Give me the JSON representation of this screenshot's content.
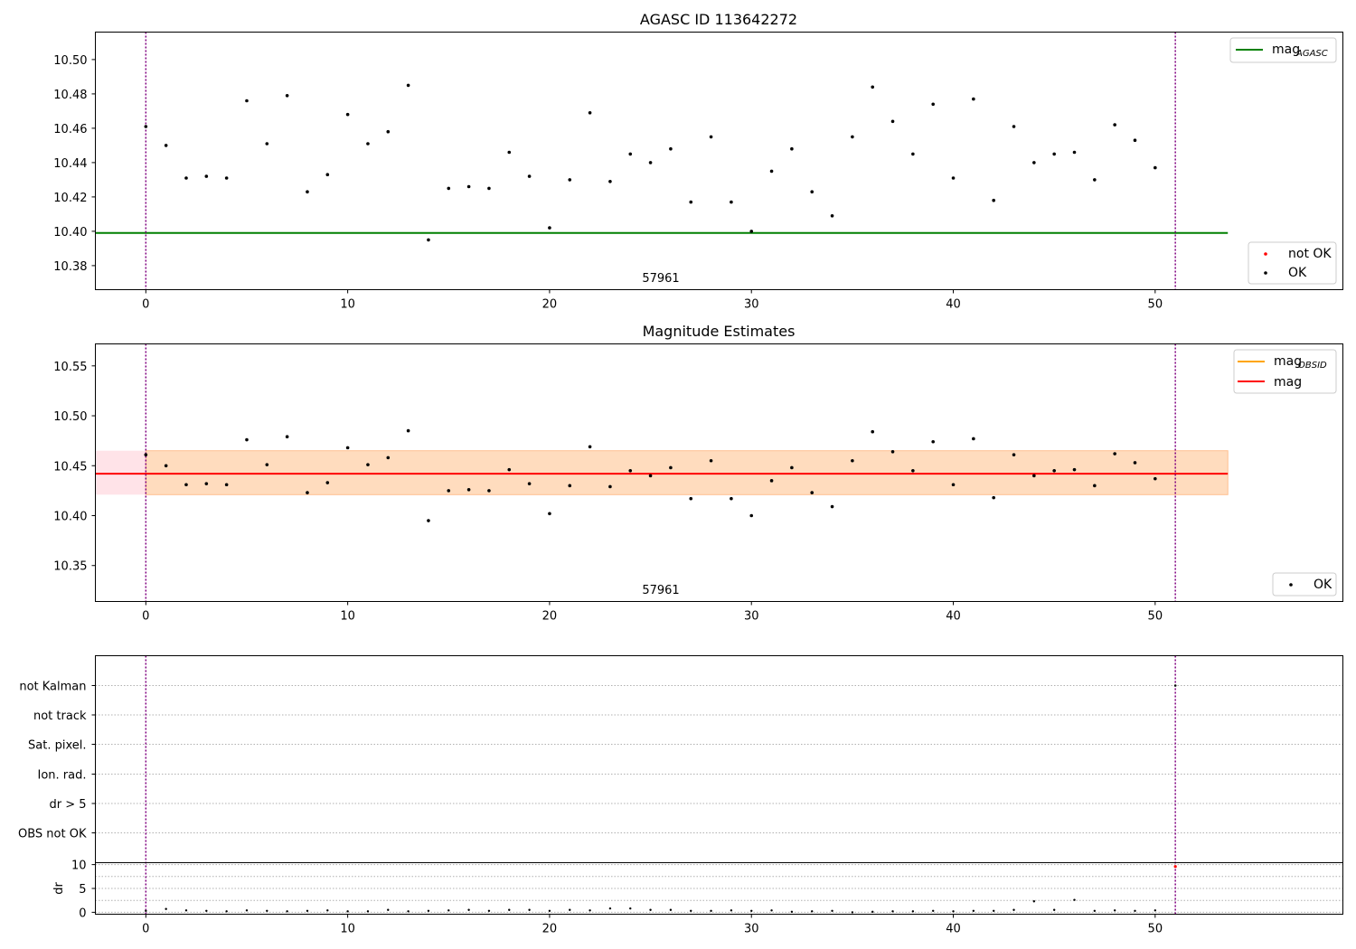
{
  "chart_data": [
    {
      "type": "scatter",
      "title": "AGASC ID 113642272",
      "annotation": "57961",
      "xlim": [
        -2.5,
        59.3
      ],
      "ylim": [
        10.366,
        10.516
      ],
      "xticks": [
        0,
        10,
        20,
        30,
        40,
        50
      ],
      "xtick_labels": [
        "0",
        "10",
        "20",
        "30",
        "40",
        "50"
      ],
      "yticks": [
        10.38,
        10.4,
        10.42,
        10.44,
        10.46,
        10.48,
        10.5
      ],
      "ytick_labels": [
        "10.38",
        "10.40",
        "10.42",
        "10.44",
        "10.46",
        "10.48",
        "10.50"
      ],
      "vlines": [
        0,
        51
      ],
      "hline": {
        "value": 10.399,
        "x_range": [
          -2.5,
          53.6
        ],
        "color": "#008000",
        "name": "mag",
        "subscript": "AGASC"
      },
      "legend_top": [
        {
          "label": "mag",
          "subscript": "AGASC",
          "color": "#008000",
          "kind": "line"
        }
      ],
      "legend_bottom": [
        {
          "label": "not OK",
          "color": "#ff0000",
          "kind": "dot"
        },
        {
          "label": "OK",
          "color": "#000000",
          "kind": "dot"
        }
      ],
      "series": [
        {
          "name": "OK",
          "color": "#000000",
          "x": [
            0,
            1,
            2,
            3,
            4,
            5,
            6,
            7,
            8,
            9,
            10,
            11,
            12,
            13,
            14,
            15,
            16,
            17,
            18,
            19,
            20,
            21,
            22,
            23,
            24,
            25,
            26,
            27,
            28,
            29,
            30,
            31,
            32,
            33,
            34,
            35,
            36,
            37,
            38,
            39,
            40,
            41,
            42,
            43,
            44,
            45,
            46,
            47,
            48,
            49,
            50
          ],
          "y": [
            10.461,
            10.45,
            10.431,
            10.432,
            10.431,
            10.476,
            10.451,
            10.479,
            10.423,
            10.433,
            10.468,
            10.451,
            10.458,
            10.485,
            10.395,
            10.425,
            10.426,
            10.425,
            10.446,
            10.432,
            10.402,
            10.43,
            10.469,
            10.429,
            10.445,
            10.44,
            10.448,
            10.417,
            10.455,
            10.417,
            10.4,
            10.435,
            10.448,
            10.423,
            10.409,
            10.455,
            10.484,
            10.464,
            10.445,
            10.474,
            10.431,
            10.477,
            10.418,
            10.461,
            10.44,
            10.445,
            10.446,
            10.43,
            10.462,
            10.453,
            10.437
          ]
        },
        {
          "name": "not OK",
          "color": "#ff0000",
          "x": [],
          "y": []
        }
      ]
    },
    {
      "type": "scatter",
      "title": "Magnitude Estimates",
      "annotation": "57961",
      "xlim": [
        -2.5,
        59.3
      ],
      "ylim": [
        10.314,
        10.572
      ],
      "xticks": [
        0,
        10,
        20,
        30,
        40,
        50
      ],
      "xtick_labels": [
        "0",
        "10",
        "20",
        "30",
        "40",
        "50"
      ],
      "yticks": [
        10.35,
        10.4,
        10.45,
        10.5,
        10.55
      ],
      "ytick_labels": [
        "10.35",
        "10.40",
        "10.45",
        "10.50",
        "10.55"
      ],
      "vlines": [
        0,
        51
      ],
      "mag_line": {
        "value": 10.442,
        "x_range": [
          -2.5,
          53.6
        ],
        "color": "#ff0000"
      },
      "band_outer": {
        "y": [
          10.421,
          10.465
        ],
        "x_range": [
          -2.5,
          53.6
        ],
        "color": "#ffc0cb"
      },
      "band_inner": {
        "y": [
          10.421,
          10.465
        ],
        "x_range": [
          0,
          53.6
        ],
        "color": "#ffdab9"
      },
      "legend_top": [
        {
          "label": "mag",
          "subscript": "OBSID",
          "color": "#ffa500",
          "kind": "line"
        },
        {
          "label": "mag",
          "subscript": "",
          "color": "#ff0000",
          "kind": "line"
        }
      ],
      "legend_bottom": [
        {
          "label": "OK",
          "color": "#000000",
          "kind": "dot"
        }
      ],
      "series": [
        {
          "name": "OK",
          "color": "#000000",
          "x": [
            0,
            1,
            2,
            3,
            4,
            5,
            6,
            7,
            8,
            9,
            10,
            11,
            12,
            13,
            14,
            15,
            16,
            17,
            18,
            19,
            20,
            21,
            22,
            23,
            24,
            25,
            26,
            27,
            28,
            29,
            30,
            31,
            32,
            33,
            34,
            35,
            36,
            37,
            38,
            39,
            40,
            41,
            42,
            43,
            44,
            45,
            46,
            47,
            48,
            49,
            50
          ],
          "y": [
            10.461,
            10.45,
            10.431,
            10.432,
            10.431,
            10.476,
            10.451,
            10.479,
            10.423,
            10.433,
            10.468,
            10.451,
            10.458,
            10.485,
            10.395,
            10.425,
            10.426,
            10.425,
            10.446,
            10.432,
            10.402,
            10.43,
            10.469,
            10.429,
            10.445,
            10.44,
            10.448,
            10.417,
            10.455,
            10.417,
            10.4,
            10.435,
            10.448,
            10.423,
            10.409,
            10.455,
            10.484,
            10.464,
            10.445,
            10.474,
            10.431,
            10.477,
            10.418,
            10.461,
            10.44,
            10.445,
            10.446,
            10.43,
            10.462,
            10.453,
            10.437
          ]
        }
      ]
    },
    {
      "type": "scatter",
      "title": "",
      "xlim": [
        -2.5,
        59.3
      ],
      "categories": [
        "not Kalman",
        "not track",
        "Sat. pixel.",
        "Ion. rad.",
        "dr > 5",
        "OBS not OK"
      ],
      "vlines": [
        0,
        51
      ],
      "flag_points": [
        {
          "category": "not Kalman",
          "x": 51
        }
      ],
      "dr": {
        "ylabel": "dr",
        "ylim": [
          -0.4,
          10.4
        ],
        "yticks": [
          0,
          5,
          10
        ],
        "ytick_labels": [
          "0",
          "5",
          "10"
        ],
        "x": [
          0,
          1,
          2,
          3,
          4,
          5,
          6,
          7,
          8,
          9,
          10,
          11,
          12,
          13,
          14,
          15,
          16,
          17,
          18,
          19,
          20,
          21,
          22,
          23,
          24,
          25,
          26,
          27,
          28,
          29,
          30,
          31,
          32,
          33,
          34,
          35,
          36,
          37,
          38,
          39,
          40,
          41,
          42,
          43,
          44,
          45,
          46,
          47,
          48,
          49,
          50
        ],
        "y": [
          0.3,
          0.7,
          0.4,
          0.3,
          0.2,
          0.4,
          0.3,
          0.2,
          0.3,
          0.4,
          0.2,
          0.2,
          0.5,
          0.2,
          0.3,
          0.4,
          0.5,
          0.3,
          0.5,
          0.5,
          0.3,
          0.5,
          0.4,
          0.8,
          0.8,
          0.5,
          0.5,
          0.3,
          0.3,
          0.4,
          0.3,
          0.4,
          0.1,
          0.2,
          0.3,
          0.0,
          0.1,
          0.2,
          0.2,
          0.3,
          0.2,
          0.3,
          0.3,
          0.5,
          2.3,
          0.5,
          2.6,
          0.3,
          0.4,
          0.3,
          0.4
        ],
        "bad": [
          {
            "x": 51,
            "y": 9.6
          }
        ]
      }
    }
  ]
}
